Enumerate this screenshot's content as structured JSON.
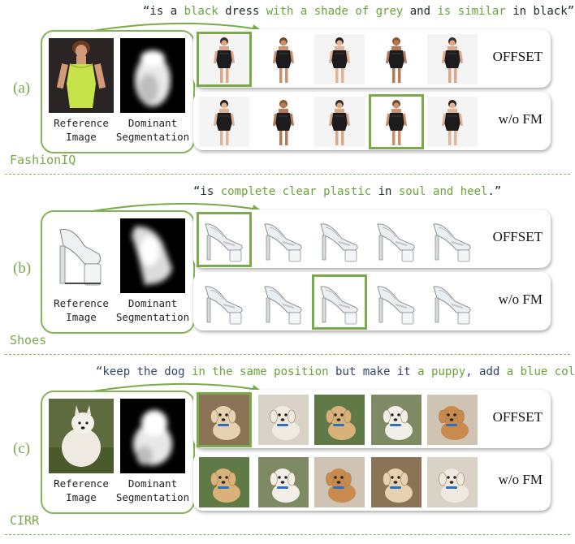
{
  "colors": {
    "accent": "#7aab4b",
    "text": "#1f2a2a",
    "navy": "#33446e"
  },
  "captions": {
    "reference": [
      "Reference",
      "Image"
    ],
    "segmentation": [
      "Dominant",
      "Segmentation"
    ]
  },
  "row_labels": {
    "ours": "OFFSET",
    "baseline": "w/o FM"
  },
  "panels": [
    {
      "letter": "(a)",
      "dataset": "FashionIQ",
      "quote": [
        {
          "t": "“is a ",
          "c": "k"
        },
        {
          "t": "black",
          "c": "g"
        },
        {
          "t": " dress ",
          "c": "k"
        },
        {
          "t": "with a shade of grey",
          "c": "g"
        },
        {
          "t": " and ",
          "c": "k"
        },
        {
          "t": "is similar",
          "c": "g"
        },
        {
          "t": " in black”",
          "c": "k"
        }
      ],
      "kind": "dress",
      "selected_ours": 0,
      "selected_base": 3
    },
    {
      "letter": "(b)",
      "dataset": "Shoes",
      "quote": [
        {
          "t": "“is ",
          "c": "k"
        },
        {
          "t": "complete clear plastic",
          "c": "g"
        },
        {
          "t": " in ",
          "c": "k"
        },
        {
          "t": "soul and heel",
          "c": "g"
        },
        {
          "t": ".”",
          "c": "k"
        }
      ],
      "kind": "shoe",
      "selected_ours": 0,
      "selected_base": 2
    },
    {
      "letter": "(c)",
      "dataset": "CIRR",
      "quote": [
        {
          "t": "“keep the dog ",
          "c": "n"
        },
        {
          "t": "in the same position",
          "c": "g"
        },
        {
          "t": " but make it ",
          "c": "n"
        },
        {
          "t": "a puppy",
          "c": "g"
        },
        {
          "t": ", add ",
          "c": "n"
        },
        {
          "t": "a blue collar",
          "c": "g"
        },
        {
          "t": "”",
          "c": "n"
        }
      ],
      "kind": "dog",
      "selected_ours": 0,
      "selected_base": -1
    }
  ]
}
